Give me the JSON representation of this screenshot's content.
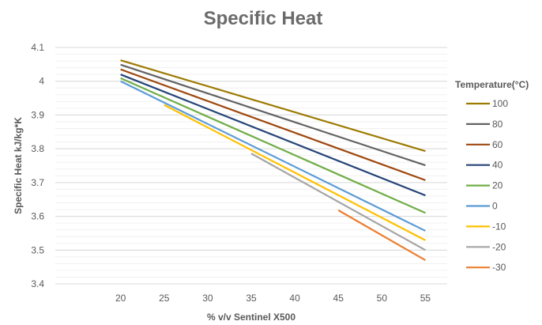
{
  "chart_data": {
    "type": "line",
    "title": "Specific Heat",
    "xlabel": "% v/v Sentinel X500",
    "ylabel": "Specific Heat kJ/kg*K",
    "xlim": [
      12.5,
      57.5
    ],
    "ylim": [
      3.4,
      4.1
    ],
    "x_ticks": [
      20,
      25,
      30,
      35,
      40,
      45,
      50,
      55
    ],
    "y_ticks": [
      3.4,
      3.5,
      3.6,
      3.7,
      3.8,
      3.9,
      4,
      4.1
    ],
    "y_tick_labels": [
      "3.4",
      "3.5",
      "3.6",
      "3.7",
      "3.8",
      "3.9",
      "4",
      "4.1"
    ],
    "grid": true,
    "legend_title": "Temperature(°C)",
    "legend_position": "right",
    "series": [
      {
        "name": "100",
        "color": "#9c7a00",
        "x": [
          20,
          55
        ],
        "values": [
          4.062,
          3.793
        ]
      },
      {
        "name": "80",
        "color": "#636363",
        "x": [
          20,
          55
        ],
        "values": [
          4.049,
          3.751
        ]
      },
      {
        "name": "60",
        "color": "#9e480e",
        "x": [
          20,
          55
        ],
        "values": [
          4.035,
          3.707
        ]
      },
      {
        "name": "40",
        "color": "#264478",
        "x": [
          20,
          55
        ],
        "values": [
          4.02,
          3.662
        ]
      },
      {
        "name": "20",
        "color": "#70ad47",
        "x": [
          20,
          55
        ],
        "values": [
          4.009,
          3.61
        ]
      },
      {
        "name": "0",
        "color": "#5b9bd5",
        "x": [
          20,
          55
        ],
        "values": [
          4.0,
          3.557
        ]
      },
      {
        "name": "-10",
        "color": "#ffc000",
        "x": [
          25,
          55
        ],
        "values": [
          3.93,
          3.529
        ]
      },
      {
        "name": "-20",
        "color": "#a5a5a5",
        "x": [
          35,
          55
        ],
        "values": [
          3.786,
          3.5
        ]
      },
      {
        "name": "-30",
        "color": "#ed7d31",
        "x": [
          45,
          55
        ],
        "values": [
          3.618,
          3.47
        ]
      }
    ]
  }
}
